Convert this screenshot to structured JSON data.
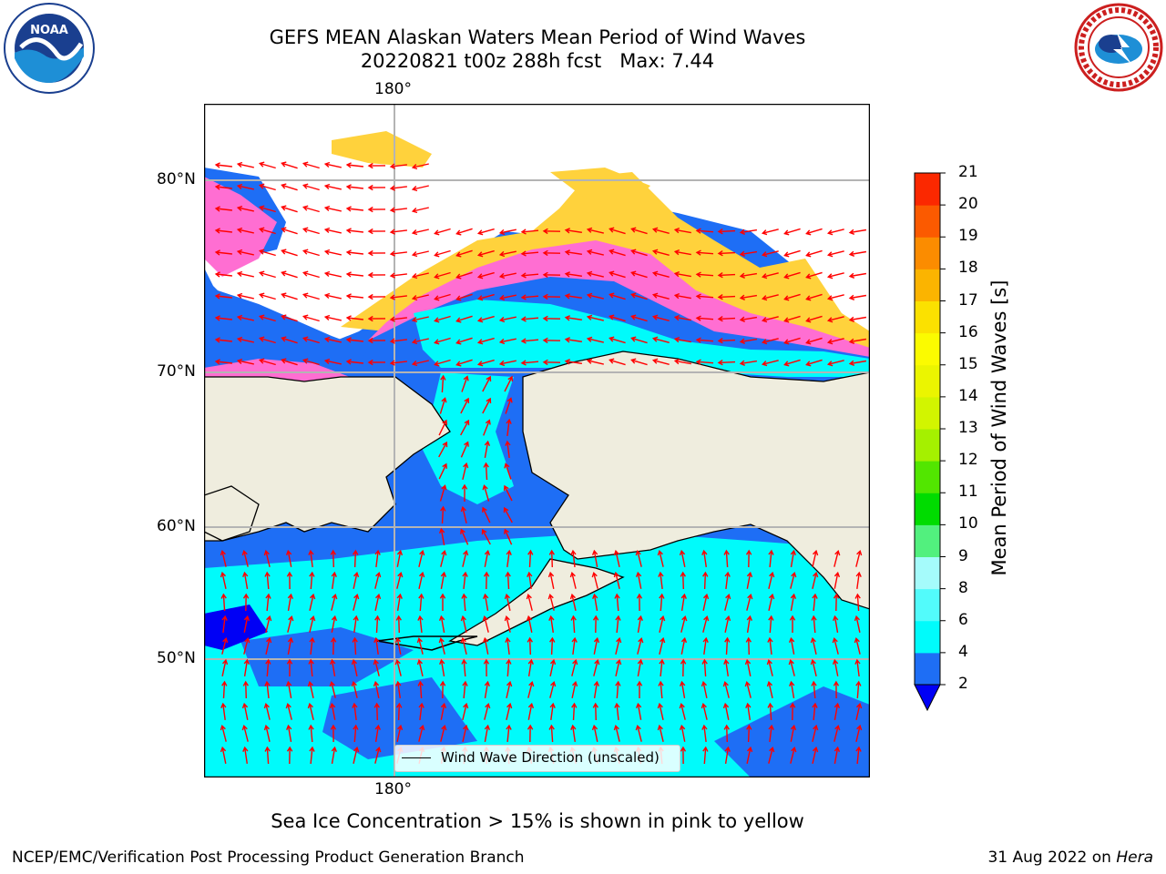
{
  "header": {
    "title_line1": "GEFS MEAN Alaskan Waters Mean Period of Wind Waves",
    "title_line2": "20220821 t00z 288h fcst   Max: 7.44"
  },
  "logos": {
    "left": {
      "name": "NOARA",
      "text": "NOAA"
    },
    "right": {
      "name": "national-weather-service"
    }
  },
  "map": {
    "lon_labels": {
      "top": "180°",
      "bottom": "180°"
    },
    "lat_labels": [
      "80°N",
      "70°N",
      "60°N",
      "50°N"
    ],
    "legend_label": "Wind Wave Direction (unscaled)",
    "colors": {
      "land": "#efedde",
      "ocean_low": "#1e6ef5",
      "ocean_mid": "#00fbfb",
      "ice_pink": "#ff6ed2",
      "ice_yellow": "#ffd23c",
      "arrow": "#ff0000"
    }
  },
  "colorbar": {
    "label": "Mean Period of Wind Waves [s]",
    "ticks": [
      "2",
      "4",
      "6",
      "8",
      "9",
      "10",
      "11",
      "12",
      "13",
      "14",
      "15",
      "16",
      "17",
      "18",
      "19",
      "20",
      "21"
    ],
    "colors": [
      "#1e6ef5",
      "#00fbfb",
      "#52fbfb",
      "#a5fbfb",
      "#52f07e",
      "#00dc00",
      "#52e600",
      "#a5f000",
      "#d2f500",
      "#ebf500",
      "#fbfb00",
      "#fbe100",
      "#fbb400",
      "#fb8c00",
      "#fb5a00",
      "#fb2800",
      "#fb0000"
    ],
    "under_color": "#0000f5"
  },
  "footer": {
    "note": "Sea Ice Concentration > 15% is shown in pink to yellow",
    "credit": "NCEP/EMC/Verification Post Processing Product Generation Branch",
    "date_prefix": "31 Aug 2022 on ",
    "machine": "Hera"
  }
}
